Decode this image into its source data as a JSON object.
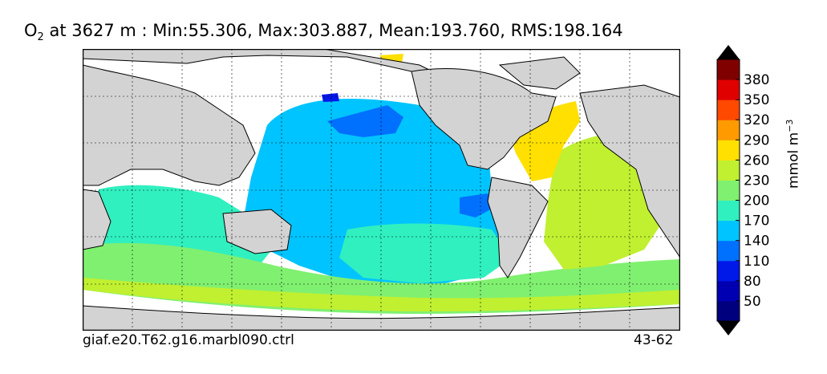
{
  "title": {
    "variable": "O",
    "variable_sub": "2",
    "rest": " at 3627 m : Min:55.306, Max:303.887, Mean:193.760, RMS:198.164"
  },
  "footer": {
    "left": "giaf.e20.T62.g16.marbl090.ctrl",
    "right": "43-62"
  },
  "colorbar": {
    "unit_text": "mmol m",
    "unit_exp": "−3",
    "ticks": [
      "50",
      "80",
      "110",
      "140",
      "170",
      "200",
      "230",
      "260",
      "290",
      "320",
      "350",
      "380"
    ],
    "colors": [
      "#00007f",
      "#0000b2",
      "#0018e8",
      "#0070ff",
      "#00c4ff",
      "#30f0c0",
      "#80f070",
      "#c0f030",
      "#ffe000",
      "#ff9a00",
      "#ff4800",
      "#e00000",
      "#800000"
    ]
  },
  "map_colors": {
    "land": "#d3d3d3",
    "unfilled": "#ffffff",
    "pacific_deep": "#00c4ff",
    "pacific_low": "#0070ff",
    "southern": "#80f070",
    "indian": "#30f0c0",
    "atlantic": "#c0f030",
    "north_atlantic": "#ffe000",
    "arctic": "#ff9a00"
  }
}
